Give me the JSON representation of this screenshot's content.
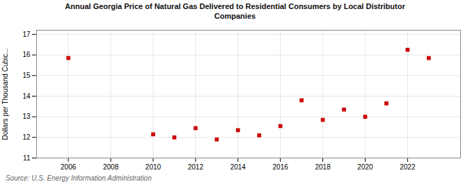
{
  "chart_data": {
    "type": "scatter",
    "title": "Annual Georgia Price of Natural Gas Delivered to Residential Consumers by Local Distributor\nCompanies",
    "ylabel": "Dollars per Thousand Cubic...",
    "annotations": [
      "Source: U.S. Energy Information Administration"
    ],
    "x": [
      2006,
      2010,
      2011,
      2012,
      2013,
      2014,
      2015,
      2016,
      2017,
      2018,
      2019,
      2020,
      2021,
      2022,
      2023
    ],
    "values": [
      15.85,
      12.15,
      12.0,
      12.45,
      11.9,
      12.35,
      12.1,
      12.55,
      13.8,
      12.85,
      13.35,
      13.0,
      13.65,
      16.25,
      15.85
    ],
    "color": "#cc0000",
    "marker": "square",
    "xlim": [
      2004.5,
      2024.5
    ],
    "ylim": [
      11,
      17.2
    ],
    "xticks": [
      2006,
      2008,
      2010,
      2012,
      2014,
      2016,
      2018,
      2020,
      2022
    ],
    "yticks": [
      11,
      12,
      13,
      14,
      15,
      16,
      17
    ],
    "grid": true
  }
}
